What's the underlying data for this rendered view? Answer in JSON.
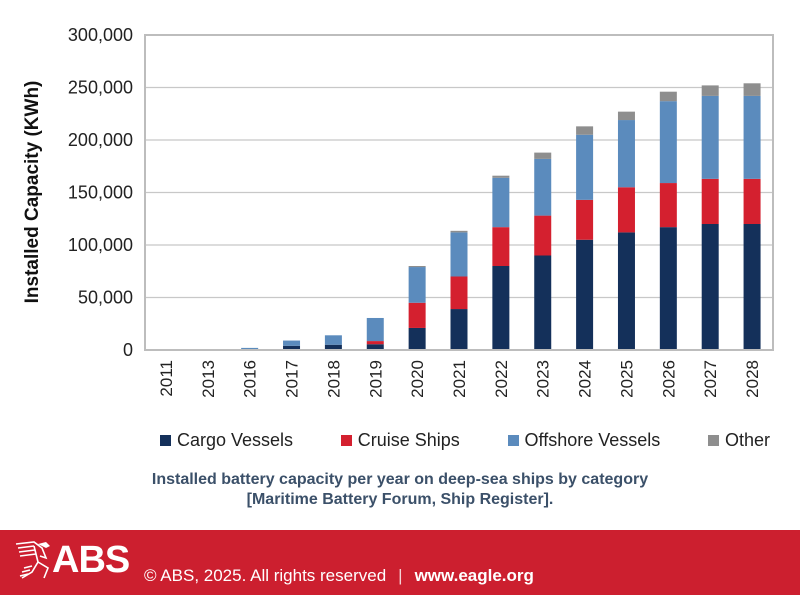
{
  "chart_data": {
    "type": "bar",
    "stacked": true,
    "title": "",
    "xlabel": "",
    "ylabel": "Installed Capacity (KWh)",
    "ylim": [
      0,
      300000
    ],
    "yticks": [
      0,
      50000,
      100000,
      150000,
      200000,
      250000,
      300000
    ],
    "ytick_labels": [
      "0",
      "50,000",
      "100,000",
      "150,000",
      "200,000",
      "250,000",
      "300,000"
    ],
    "grid": true,
    "legend_position": "bottom",
    "categories": [
      "2011",
      "2013",
      "2016",
      "2017",
      "2018",
      "2019",
      "2020",
      "2021",
      "2022",
      "2023",
      "2024",
      "2025",
      "2026",
      "2027",
      "2028"
    ],
    "series": [
      {
        "name": "Cargo Vessels",
        "color": "#14305a",
        "values": [
          0,
          0,
          0,
          4000,
          5000,
          5500,
          21000,
          39000,
          80000,
          90000,
          105000,
          112000,
          117000,
          120000,
          120000
        ]
      },
      {
        "name": "Cruise Ships",
        "color": "#d4202f",
        "values": [
          0,
          0,
          0,
          0,
          0,
          3000,
          24000,
          31000,
          37000,
          38000,
          38000,
          43000,
          42000,
          43000,
          43000
        ]
      },
      {
        "name": "Offshore Vessels",
        "color": "#5b8bbd",
        "values": [
          300,
          300,
          2000,
          5000,
          9000,
          22000,
          34000,
          42000,
          47000,
          54000,
          62000,
          64000,
          78000,
          79000,
          79000
        ]
      },
      {
        "name": "Other",
        "color": "#8e8e8e",
        "values": [
          0,
          0,
          0,
          0,
          0,
          0,
          1000,
          1500,
          2000,
          6000,
          8000,
          8000,
          9000,
          10000,
          12000
        ]
      }
    ]
  },
  "caption": {
    "line1": "Installed battery capacity per year on deep-sea ships by category",
    "line2": "[Maritime Battery Forum, Ship Register]."
  },
  "footer": {
    "logo_text": "ABS",
    "logo_icon": "eagle-icon",
    "copyright": "© ABS, 2025. All rights reserved",
    "separator": "|",
    "url": "www.eagle.org",
    "background": "#cc1f2f"
  }
}
